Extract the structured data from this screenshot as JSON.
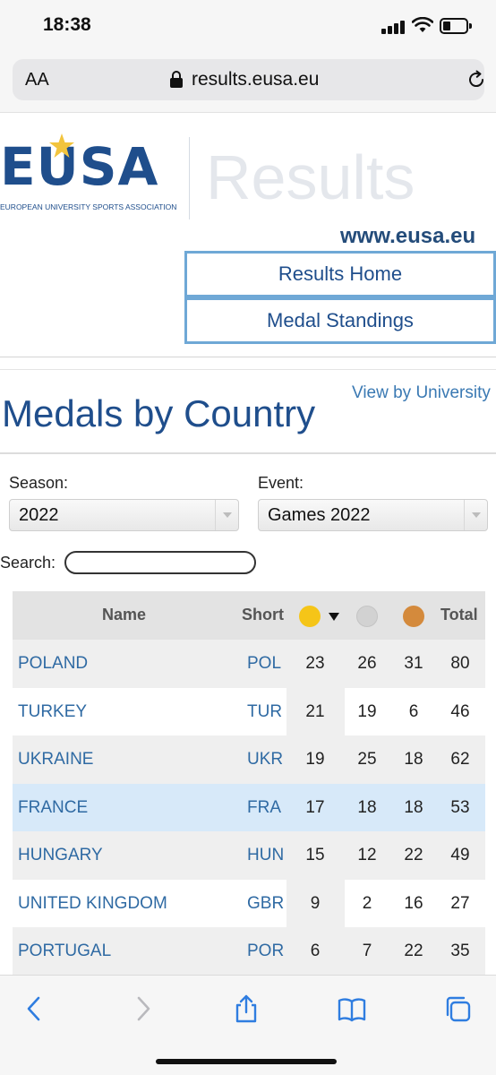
{
  "status_bar": {
    "time": "18:38"
  },
  "browser": {
    "aa_label": "AA",
    "url": "results.eusa.eu"
  },
  "header": {
    "logo_text": "EUSA",
    "logo_subtitle": "EUROPEAN UNIVERSITY SPORTS ASSOCIATION",
    "results_title": "Results",
    "site_link": "www.eusa.eu",
    "nav": [
      "Results Home",
      "Medal Standings"
    ]
  },
  "page": {
    "view_by_university": "View by University",
    "title": "Medals by Country"
  },
  "filters": {
    "season_label": "Season:",
    "season_value": "2022",
    "event_label": "Event:",
    "event_value": "Games 2022",
    "search_label": "Search:",
    "search_value": ""
  },
  "table": {
    "headers": {
      "name": "Name",
      "short": "Short",
      "total": "Total"
    },
    "medal_colors": {
      "gold": "#f5c518",
      "silver": "#cfcfcf",
      "bronze": "#d48a3c"
    },
    "rows": [
      {
        "name": "POLAND",
        "short": "POL",
        "gold": "23",
        "silver": "26",
        "bronze": "31",
        "total": "80"
      },
      {
        "name": "TURKEY",
        "short": "TUR",
        "gold": "21",
        "silver": "19",
        "bronze": "6",
        "total": "46"
      },
      {
        "name": "UKRAINE",
        "short": "UKR",
        "gold": "19",
        "silver": "25",
        "bronze": "18",
        "total": "62"
      },
      {
        "name": "FRANCE",
        "short": "FRA",
        "gold": "17",
        "silver": "18",
        "bronze": "18",
        "total": "53"
      },
      {
        "name": "HUNGARY",
        "short": "HUN",
        "gold": "15",
        "silver": "12",
        "bronze": "22",
        "total": "49"
      },
      {
        "name": "UNITED KINGDOM",
        "short": "GBR",
        "gold": "9",
        "silver": "2",
        "bronze": "16",
        "total": "27"
      },
      {
        "name": "PORTUGAL",
        "short": "POR",
        "gold": "6",
        "silver": "7",
        "bronze": "22",
        "total": "35"
      }
    ]
  },
  "toolbar": {
    "icons": [
      "back-icon",
      "forward-icon",
      "share-icon",
      "bookmarks-icon",
      "tabs-icon"
    ]
  }
}
